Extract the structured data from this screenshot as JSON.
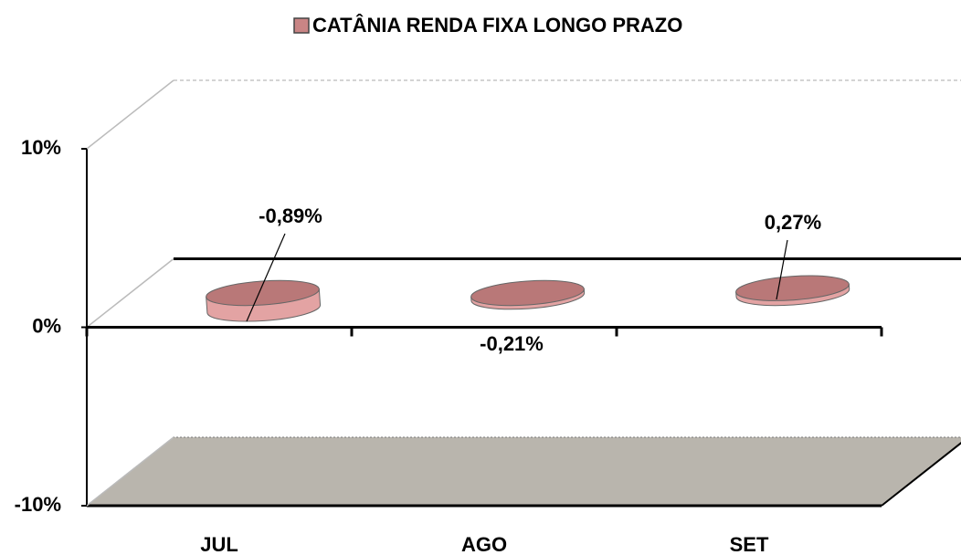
{
  "chart_data": {
    "type": "bar3d",
    "categories": [
      "JUL",
      "AGO",
      "SET"
    ],
    "series": [
      {
        "name": "CATÂNIA RENDA FIXA LONGO PRAZO",
        "color": "#c98585",
        "values": [
          -0.89,
          -0.21,
          0.27
        ],
        "value_labels": [
          "-0,89%",
          "-0,21%",
          "0,27%"
        ]
      }
    ],
    "ylim": [
      -10,
      10
    ],
    "yticks": [
      {
        "value": -10,
        "label": "-10%"
      },
      {
        "value": 0,
        "label": "0%"
      },
      {
        "value": 10,
        "label": "10%"
      }
    ],
    "legend": "top"
  }
}
